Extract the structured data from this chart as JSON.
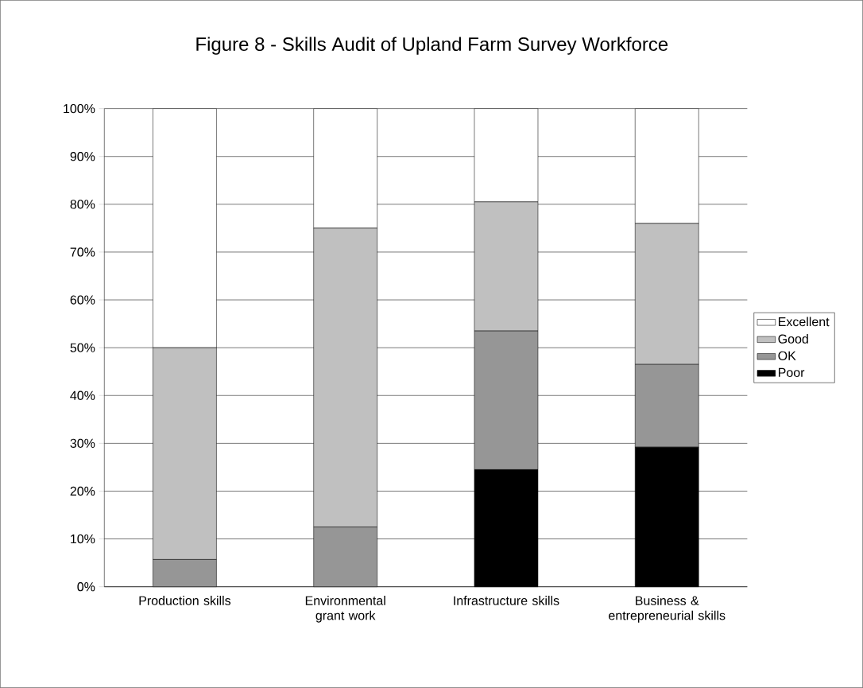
{
  "chart_data": {
    "type": "bar",
    "stacked": true,
    "title": "Figure 8 - Skills Audit of Upland Farm Survey Workforce",
    "categories": [
      "Production skills",
      "Environmental grant work",
      "Infrastructure skills",
      "Business & entrepreneurial skills"
    ],
    "series": [
      {
        "name": "Poor",
        "color": "#000000",
        "values": [
          0,
          0,
          24.5,
          29.2
        ]
      },
      {
        "name": "OK",
        "color": "#969696",
        "values": [
          5.7,
          12.5,
          29.0,
          17.3
        ]
      },
      {
        "name": "Good",
        "color": "#c0c0c0",
        "values": [
          44.3,
          62.5,
          27.0,
          29.5
        ]
      },
      {
        "name": "Excellent",
        "color": "#ffffff",
        "values": [
          50.0,
          25.0,
          19.5,
          24.0
        ]
      }
    ],
    "ylim": [
      0,
      100
    ],
    "yticks": [
      {
        "value": 0,
        "label": "0%"
      },
      {
        "value": 10,
        "label": "10%"
      },
      {
        "value": 20,
        "label": "20%"
      },
      {
        "value": 30,
        "label": "30%"
      },
      {
        "value": 40,
        "label": "40%"
      },
      {
        "value": 50,
        "label": "50%"
      },
      {
        "value": 60,
        "label": "60%"
      },
      {
        "value": 70,
        "label": "70%"
      },
      {
        "value": 80,
        "label": "80%"
      },
      {
        "value": 90,
        "label": "90%"
      },
      {
        "value": 100,
        "label": "100%"
      }
    ],
    "grid": "y",
    "legend": "right"
  }
}
